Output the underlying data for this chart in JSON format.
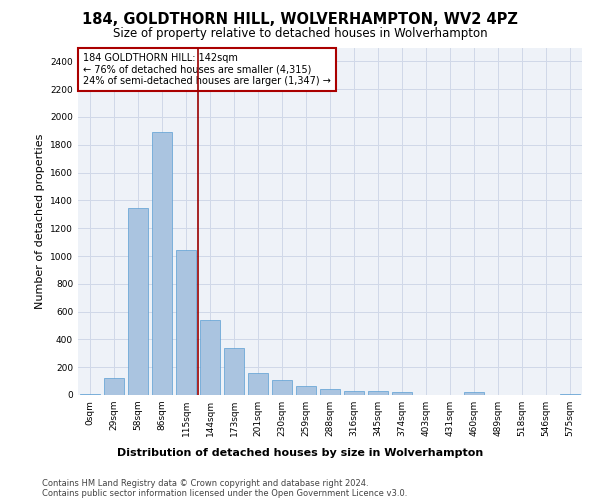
{
  "title": "184, GOLDTHORN HILL, WOLVERHAMPTON, WV2 4PZ",
  "subtitle": "Size of property relative to detached houses in Wolverhampton",
  "xlabel": "Distribution of detached houses by size in Wolverhampton",
  "ylabel": "Number of detached properties",
  "bar_labels": [
    "0sqm",
    "29sqm",
    "58sqm",
    "86sqm",
    "115sqm",
    "144sqm",
    "173sqm",
    "201sqm",
    "230sqm",
    "259sqm",
    "288sqm",
    "316sqm",
    "345sqm",
    "374sqm",
    "403sqm",
    "431sqm",
    "460sqm",
    "489sqm",
    "518sqm",
    "546sqm",
    "575sqm"
  ],
  "bar_values": [
    10,
    120,
    1345,
    1890,
    1045,
    540,
    335,
    160,
    110,
    65,
    40,
    30,
    28,
    20,
    0,
    0,
    20,
    0,
    0,
    0,
    10
  ],
  "bar_color": "#aac4e0",
  "bar_edge_color": "#5a9fd4",
  "ylim": [
    0,
    2500
  ],
  "yticks": [
    0,
    200,
    400,
    600,
    800,
    1000,
    1200,
    1400,
    1600,
    1800,
    2000,
    2200,
    2400
  ],
  "property_line_x": 4.5,
  "annotation_text_line1": "184 GOLDTHORN HILL: 142sqm",
  "annotation_text_line2": "← 76% of detached houses are smaller (4,315)",
  "annotation_text_line3": "24% of semi-detached houses are larger (1,347) →",
  "footer_line1": "Contains HM Land Registry data © Crown copyright and database right 2024.",
  "footer_line2": "Contains public sector information licensed under the Open Government Licence v3.0.",
  "grid_color": "#d0d8e8",
  "background_color": "#eef2f8",
  "vline_color": "#990000",
  "annotation_box_color": "#aa0000",
  "title_fontsize": 10.5,
  "subtitle_fontsize": 8.5,
  "ylabel_fontsize": 8,
  "xlabel_fontsize": 8,
  "tick_fontsize": 6.5,
  "annotation_fontsize": 7,
  "footer_fontsize": 6
}
